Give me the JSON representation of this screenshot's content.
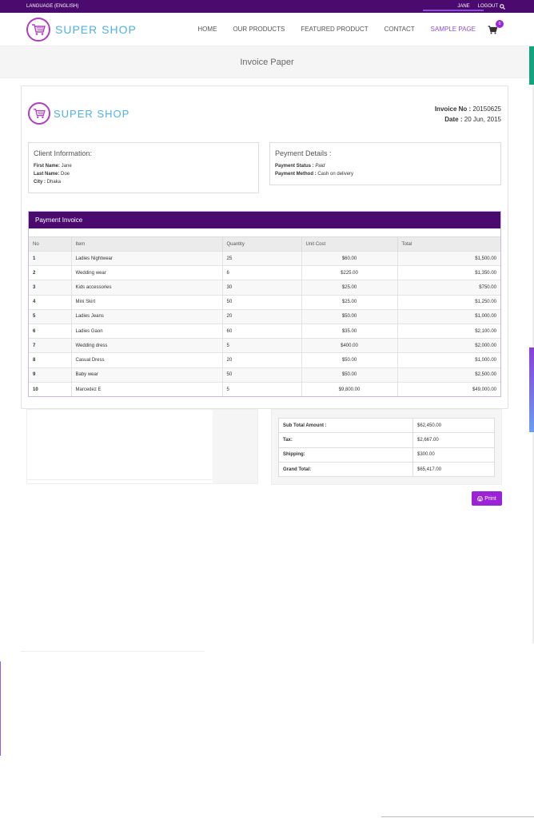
{
  "topbar": {
    "language": "LANGUAGE (ENGLISH)",
    "user": "JANE",
    "logout": "LOGOUT"
  },
  "brand": {
    "name": "SUPER SHOP"
  },
  "nav": {
    "items": [
      {
        "label": "HOME"
      },
      {
        "label": "OUR PRODUCTS"
      },
      {
        "label": "FEATURED PRODUCT"
      },
      {
        "label": "CONTACT"
      },
      {
        "label": "SAMPLE PAGE"
      }
    ],
    "cart_count": "0"
  },
  "page": {
    "title": "Invoice Paper"
  },
  "invoice": {
    "no_label": "Invoice No :",
    "no_value": " 20150625",
    "date_label": "Date :",
    "date_value": " 20 Jun, 2015",
    "client": {
      "heading": "Client Information:",
      "first_label": "First Name:",
      "first_value": " Jane",
      "last_label": "Last Name:",
      "last_value": " Doe",
      "city_label": "City :",
      "city_value": " Dhaka"
    },
    "payment": {
      "heading": "Peyment Details :",
      "status_label": "Payment Status :",
      "status_value": " Paid",
      "method_label": "Payment Method :",
      "method_value": " Cash on delivery"
    },
    "table_heading": "Payment Invoice",
    "columns": [
      "No",
      "Item",
      "Quantity",
      "Unit Cost",
      "Total"
    ],
    "rows": [
      {
        "no": "1",
        "item": "Ladies Nightwear",
        "qty": "25",
        "unit": "$60.00",
        "total": "$1,500.00"
      },
      {
        "no": "2",
        "item": "Wedding wear",
        "qty": "6",
        "unit": "$225.00",
        "total": "$1,350.00"
      },
      {
        "no": "3",
        "item": "Kids accessories",
        "qty": "30",
        "unit": "$25.00",
        "total": "$750.00"
      },
      {
        "no": "4",
        "item": "Mini Skirt",
        "qty": "50",
        "unit": "$25.00",
        "total": "$1,250.00"
      },
      {
        "no": "5",
        "item": "Ladies Jeans",
        "qty": "20",
        "unit": "$50.00",
        "total": "$1,000.00"
      },
      {
        "no": "6",
        "item": "Ladies Gaon",
        "qty": "60",
        "unit": "$35.00",
        "total": "$2,100.00"
      },
      {
        "no": "7",
        "item": "Wedding dress",
        "qty": "5",
        "unit": "$400.00",
        "total": "$2,000.00"
      },
      {
        "no": "8",
        "item": "Casual Dress",
        "qty": "20",
        "unit": "$50.00",
        "total": "$1,000.00"
      },
      {
        "no": "9",
        "item": "Baby wear",
        "qty": "50",
        "unit": "$50.00",
        "total": "$2,500.00"
      },
      {
        "no": "10",
        "item": "Marcedez E",
        "qty": "5",
        "unit": "$9,800.00",
        "total": "$49,000.00"
      }
    ],
    "totals": [
      {
        "label": "Sub Total Amount :",
        "value": "$62,450.00"
      },
      {
        "label": "Tax:",
        "value": "$2,667.00"
      },
      {
        "label": "Shipping:",
        "value": "$300.00"
      },
      {
        "label": "Grand Total:",
        "value": "$65,417.00"
      }
    ],
    "print_label": "Print"
  },
  "colors": {
    "topbar": "#4a0a6e",
    "accent": "#9b22d6",
    "brand_text": "#4fb1e6"
  }
}
